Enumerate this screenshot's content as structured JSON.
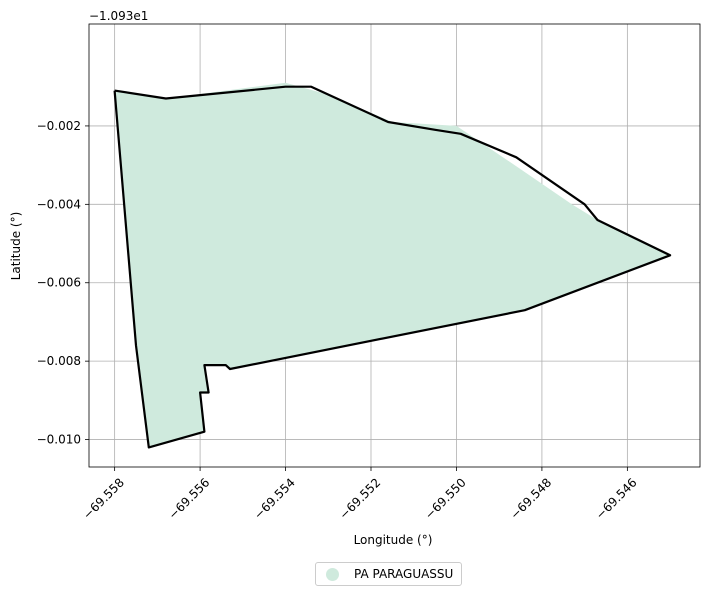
{
  "chart_data": {
    "type": "map",
    "title": "",
    "xlabel": "Longitude (°)",
    "ylabel": "Latitude (°)",
    "y_offset_label": "−1.093e1",
    "xlim": [
      -69.5586,
      -69.5443
    ],
    "ylim": [
      -0.0107,
      0.0006
    ],
    "x_ticks": [
      -69.558,
      -69.556,
      -69.554,
      -69.552,
      -69.55,
      -69.548,
      -69.546
    ],
    "x_tick_labels": [
      "−69.558",
      "−69.556",
      "−69.554",
      "−69.552",
      "−69.550",
      "−69.548",
      "−69.546"
    ],
    "y_ticks": [
      -0.002,
      -0.004,
      -0.006,
      -0.008,
      -0.01
    ],
    "y_tick_labels": [
      "−0.002",
      "−0.004",
      "−0.006",
      "−0.008",
      "−0.010"
    ],
    "grid": true,
    "fill_color": "#cfeadd",
    "outline_color": "#000000",
    "fill_polygon": [
      [
        -69.558,
        -0.0011
      ],
      [
        -69.5568,
        -0.0013
      ],
      [
        -69.554,
        -0.0009
      ],
      [
        -69.553,
        -0.0012
      ],
      [
        -69.5515,
        -0.0019
      ],
      [
        -69.55,
        -0.002
      ],
      [
        -69.5485,
        -0.0031
      ],
      [
        -69.5473,
        -0.004
      ],
      [
        -69.5467,
        -0.0044
      ],
      [
        -69.545,
        -0.0053
      ],
      [
        -69.5484,
        -0.0067
      ],
      [
        -69.5553,
        -0.0082
      ],
      [
        -69.5554,
        -0.0081
      ],
      [
        -69.5559,
        -0.0081
      ],
      [
        -69.5558,
        -0.0088
      ],
      [
        -69.556,
        -0.0088
      ],
      [
        -69.5559,
        -0.0098
      ],
      [
        -69.5572,
        -0.0102
      ],
      [
        -69.5575,
        -0.0076
      ]
    ],
    "outline": [
      [
        -69.558,
        -0.0011
      ],
      [
        -69.5568,
        -0.0013
      ],
      [
        -69.554,
        -0.001
      ],
      [
        -69.5534,
        -0.001
      ],
      [
        -69.5516,
        -0.0019
      ],
      [
        -69.5505,
        -0.0021
      ],
      [
        -69.5499,
        -0.0022
      ],
      [
        -69.5486,
        -0.0028
      ],
      [
        -69.547,
        -0.004
      ],
      [
        -69.5467,
        -0.0044
      ],
      [
        -69.545,
        -0.0053
      ],
      [
        -69.5484,
        -0.0067
      ],
      [
        -69.5553,
        -0.0082
      ],
      [
        -69.5554,
        -0.0081
      ],
      [
        -69.5559,
        -0.0081
      ],
      [
        -69.5558,
        -0.0088
      ],
      [
        -69.556,
        -0.0088
      ],
      [
        -69.5559,
        -0.0098
      ],
      [
        -69.5572,
        -0.0102
      ],
      [
        -69.5575,
        -0.0076
      ],
      [
        -69.558,
        -0.0011
      ]
    ],
    "legend": {
      "placement": "bottom-center",
      "entries": [
        {
          "label": "PA PARAGUASSU"
        }
      ]
    }
  }
}
